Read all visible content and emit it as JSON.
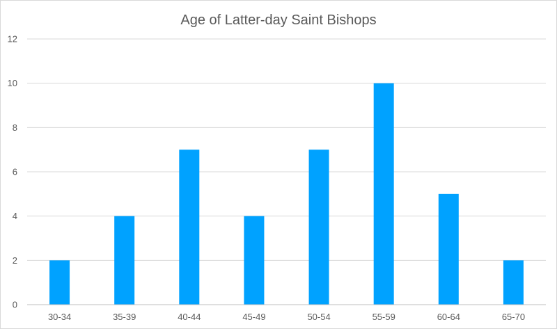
{
  "chart_data": {
    "type": "bar",
    "title": "Age of Latter-day Saint Bishops",
    "xlabel": "",
    "ylabel": "",
    "categories": [
      "30-34",
      "35-39",
      "40-44",
      "45-49",
      "50-54",
      "55-59",
      "60-64",
      "65-70"
    ],
    "series": [
      {
        "values": [
          2,
          4,
          7,
          4,
          7,
          10,
          5,
          2
        ]
      }
    ],
    "ylim": [
      0,
      12
    ],
    "yticks": [
      "0",
      "2",
      "4",
      "6",
      "8",
      "10",
      "12"
    ],
    "grid": true,
    "legend": "none",
    "bar_color": "#00a2ff"
  }
}
